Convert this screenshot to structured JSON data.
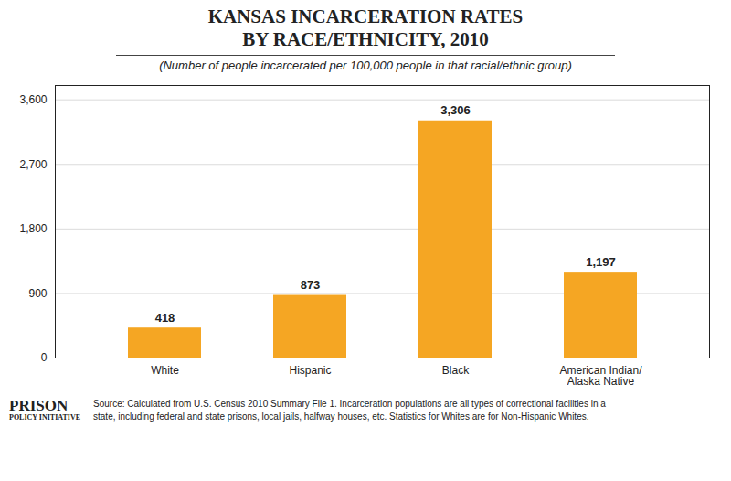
{
  "chart_data": {
    "type": "bar",
    "title": "KANSAS INCARCERATION RATES\nBY RACE/ETHNICITY, 2010",
    "subtitle": "(Number of people incarcerated per 100,000 people in that racial/ethnic group)",
    "categories": [
      "White",
      "Hispanic",
      "Black",
      "American Indian/\nAlaska Native"
    ],
    "values": [
      418,
      873,
      3306,
      1197
    ],
    "value_labels": [
      "418",
      "873",
      "3,306",
      "1,197"
    ],
    "color": "#F5A623",
    "ylim": [
      0,
      3800
    ],
    "yticks": [
      0,
      900,
      {
        "value": 1800,
        "label": "1,800"
      },
      {
        "value": 2700,
        "label": "2,700"
      },
      {
        "value": 3600,
        "label": "3,600"
      }
    ],
    "grid": true,
    "data_labels": true,
    "annotations": [
      "PRISON",
      "POLICY INITIATIVE",
      "Source: Calculated from U.S. Census 2010 Summary File 1. Incarceration populations are all types of correctional facilities in a\nstate, including federal and state prisons, local jails, halfway houses, etc. Statistics for Whites are for Non-Hispanic Whites."
    ]
  }
}
